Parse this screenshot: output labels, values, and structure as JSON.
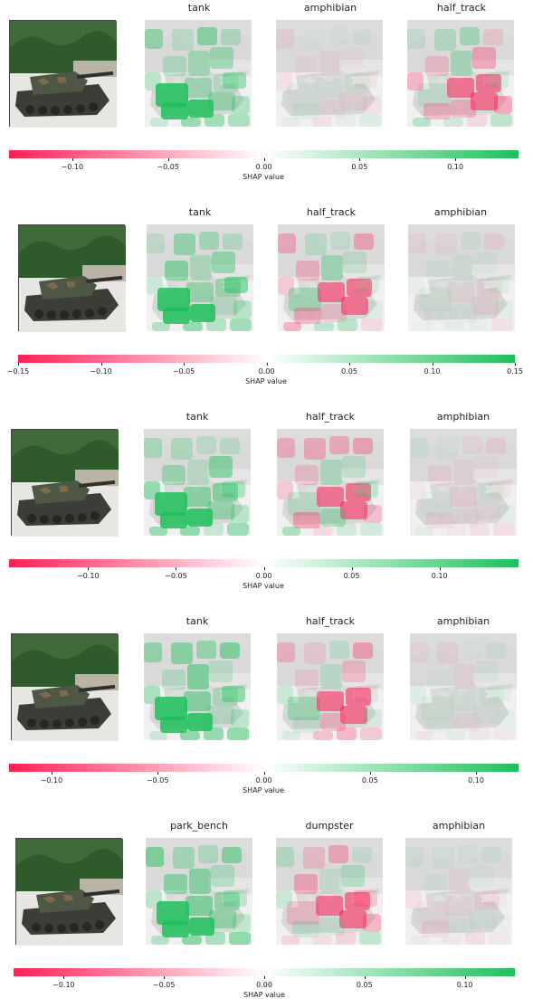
{
  "rows": [
    {
      "labels": [
        "tank",
        "amphibian",
        "half_track"
      ],
      "ticks": [
        "−0.10",
        "−0.05",
        "0.00",
        "0.05",
        "0.10"
      ],
      "axis_label": "SHAP value"
    },
    {
      "labels": [
        "tank",
        "half_track",
        "amphibian"
      ],
      "ticks": [
        "−0.15",
        "−0.10",
        "−0.05",
        "0.00",
        "0.05",
        "0.10",
        "0.15"
      ],
      "axis_label": "SHAP value"
    },
    {
      "labels": [
        "tank",
        "half_track",
        "amphibian"
      ],
      "ticks": [
        "−0.10",
        "−0.05",
        "0.00",
        "0.05",
        "0.10"
      ],
      "axis_label": "SHAP value"
    },
    {
      "labels": [
        "tank",
        "half_track",
        "amphibian"
      ],
      "ticks": [
        "−0.10",
        "−0.05",
        "0.00",
        "0.05",
        "0.10"
      ],
      "axis_label": "SHAP value"
    },
    {
      "labels": [
        "park_bench",
        "dumpster",
        "amphibian"
      ],
      "ticks": [
        "−0.10",
        "−0.05",
        "0.00",
        "0.05",
        "0.10"
      ],
      "axis_label": "SHAP value"
    }
  ],
  "colors": {
    "positive": "#1fbf5a",
    "negative": "#ff1f55"
  }
}
